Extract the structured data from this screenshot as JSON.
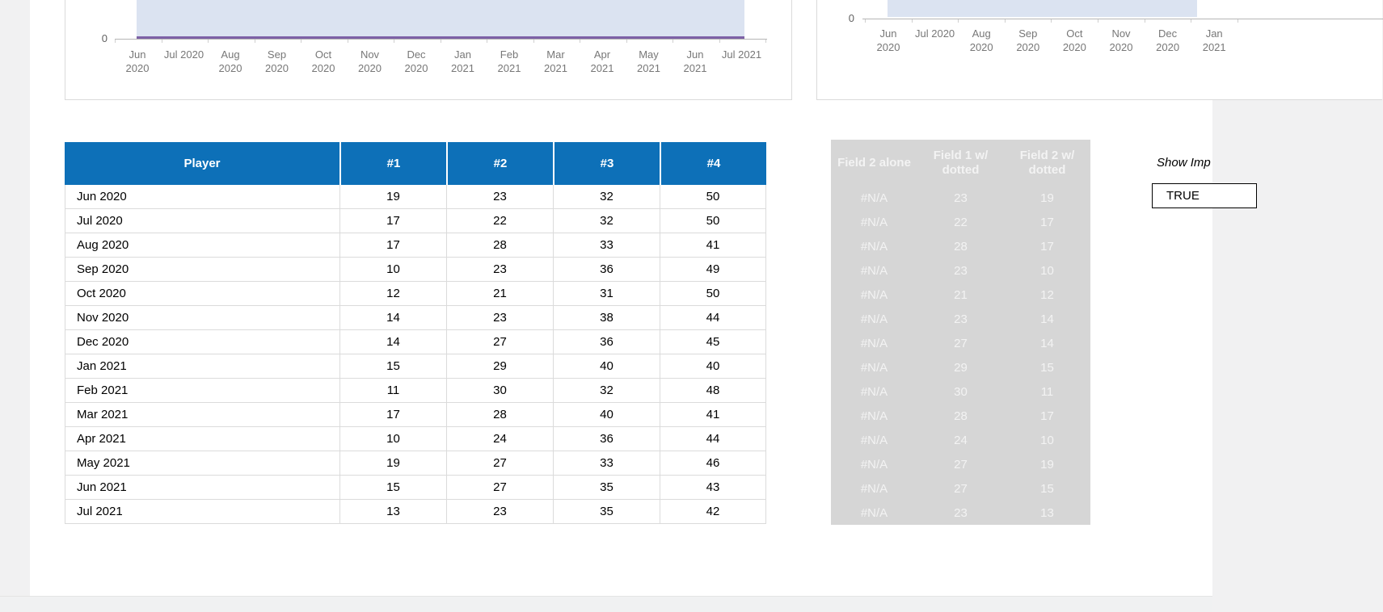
{
  "colors": {
    "header_blue": "#0d70b8",
    "area_fill": "#dbe3f1",
    "line_purple": "#7d61a6",
    "ghost_bg": "#d6d6d6",
    "ghost_text": "#f3f3f3",
    "table_border": "#dbdbdb",
    "page_bg": "#f1f1f2"
  },
  "charts": {
    "left": {
      "y_tick": "0",
      "x_labels": [
        "Jun|2020",
        "Jul 2020",
        "Aug|2020",
        "Sep|2020",
        "Oct|2020",
        "Nov|2020",
        "Dec|2020",
        "Jan|2021",
        "Feb|2021",
        "Mar|2021",
        "Apr|2021",
        "May|2021",
        "Jun|2021",
        "Jul 2021"
      ]
    },
    "right": {
      "y_tick": "0",
      "x_labels": [
        "Jun|2020",
        "Jul 2020",
        "Aug|2020",
        "Sep|2020",
        "Oct|2020",
        "Nov|2020",
        "Dec|2020",
        "Jan|2021"
      ]
    }
  },
  "chart_data": [
    {
      "type": "area",
      "position": "top-left",
      "x": [
        "Jun 2020",
        "Jul 2020",
        "Aug 2020",
        "Sep 2020",
        "Oct 2020",
        "Nov 2020",
        "Dec 2020",
        "Jan 2021",
        "Feb 2021",
        "Mar 2021",
        "Apr 2021",
        "May 2021",
        "Jun 2021",
        "Jul 2021"
      ],
      "visible_y_ticks": [
        "0"
      ],
      "series": [
        {
          "name": "shaded-area",
          "color": "#dbe3f1",
          "note": "area values extend above the visible crop"
        },
        {
          "name": "purple-line",
          "color": "#7d61a6",
          "values": [
            0,
            0,
            0,
            0,
            0,
            0,
            0,
            0,
            0,
            0,
            0,
            0,
            0,
            0
          ]
        }
      ],
      "legend": "none",
      "grid": "off"
    },
    {
      "type": "area",
      "position": "top-right",
      "x": [
        "Jun 2020",
        "Jul 2020",
        "Aug 2020",
        "Sep 2020",
        "Oct 2020",
        "Nov 2020",
        "Dec 2020",
        "Jan 2021"
      ],
      "visible_y_ticks": [
        "0"
      ],
      "series": [
        {
          "name": "shaded-area",
          "color": "#dbe3f1",
          "note": "area values extend above the visible crop; chart clipped at right edge"
        }
      ],
      "legend": "none",
      "grid": "off"
    }
  ],
  "main_table": {
    "headers": [
      "Player",
      "#1",
      "#2",
      "#3",
      "#4"
    ],
    "rows": [
      [
        "Jun 2020",
        "19",
        "23",
        "32",
        "50"
      ],
      [
        "Jul 2020",
        "17",
        "22",
        "32",
        "50"
      ],
      [
        "Aug 2020",
        "17",
        "28",
        "33",
        "41"
      ],
      [
        "Sep 2020",
        "10",
        "23",
        "36",
        "49"
      ],
      [
        "Oct 2020",
        "12",
        "21",
        "31",
        "50"
      ],
      [
        "Nov 2020",
        "14",
        "23",
        "38",
        "44"
      ],
      [
        "Dec 2020",
        "14",
        "27",
        "36",
        "45"
      ],
      [
        "Jan 2021",
        "15",
        "29",
        "40",
        "40"
      ],
      [
        "Feb 2021",
        "11",
        "30",
        "32",
        "48"
      ],
      [
        "Mar 2021",
        "17",
        "28",
        "40",
        "41"
      ],
      [
        "Apr 2021",
        "10",
        "24",
        "36",
        "44"
      ],
      [
        "May 2021",
        "19",
        "27",
        "33",
        "46"
      ],
      [
        "Jun 2021",
        "15",
        "27",
        "35",
        "43"
      ],
      [
        "Jul 2021",
        "13",
        "23",
        "35",
        "42"
      ]
    ]
  },
  "ghost_table": {
    "headers": [
      "Field 2 alone",
      "Field 1 w/ dotted",
      "Field 2 w/ dotted"
    ],
    "rows": [
      [
        "#N/A",
        "23",
        "19"
      ],
      [
        "#N/A",
        "22",
        "17"
      ],
      [
        "#N/A",
        "28",
        "17"
      ],
      [
        "#N/A",
        "23",
        "10"
      ],
      [
        "#N/A",
        "21",
        "12"
      ],
      [
        "#N/A",
        "23",
        "14"
      ],
      [
        "#N/A",
        "27",
        "14"
      ],
      [
        "#N/A",
        "29",
        "15"
      ],
      [
        "#N/A",
        "30",
        "11"
      ],
      [
        "#N/A",
        "28",
        "17"
      ],
      [
        "#N/A",
        "24",
        "10"
      ],
      [
        "#N/A",
        "27",
        "19"
      ],
      [
        "#N/A",
        "27",
        "15"
      ],
      [
        "#N/A",
        "23",
        "13"
      ]
    ]
  },
  "controls": {
    "show_label": "Show Imp",
    "toggle_value": "TRUE"
  }
}
